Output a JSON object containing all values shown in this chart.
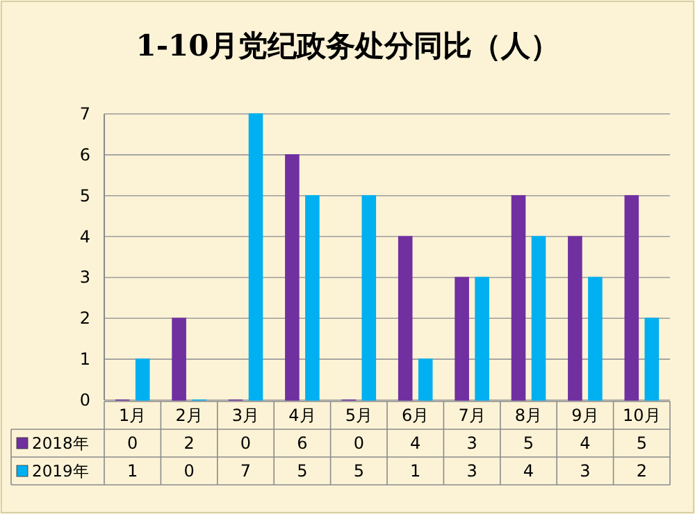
{
  "chart_data": {
    "type": "bar",
    "title": "1-10月党纪政务处分同比（人）",
    "categories": [
      "1月",
      "2月",
      "3月",
      "4月",
      "5月",
      "6月",
      "7月",
      "8月",
      "9月",
      "10月"
    ],
    "series": [
      {
        "name": "2018年",
        "color": "#7030a0",
        "values": [
          0,
          2,
          0,
          6,
          0,
          4,
          3,
          5,
          4,
          5
        ]
      },
      {
        "name": "2019年",
        "color": "#00b0f0",
        "values": [
          1,
          0,
          7,
          5,
          5,
          1,
          3,
          4,
          3,
          2
        ]
      }
    ],
    "ylim": [
      0,
      7
    ],
    "yticks": [
      0,
      1,
      2,
      3,
      4,
      5,
      6,
      7
    ],
    "grid": "y",
    "data_labels": true,
    "legend": "bottom"
  }
}
